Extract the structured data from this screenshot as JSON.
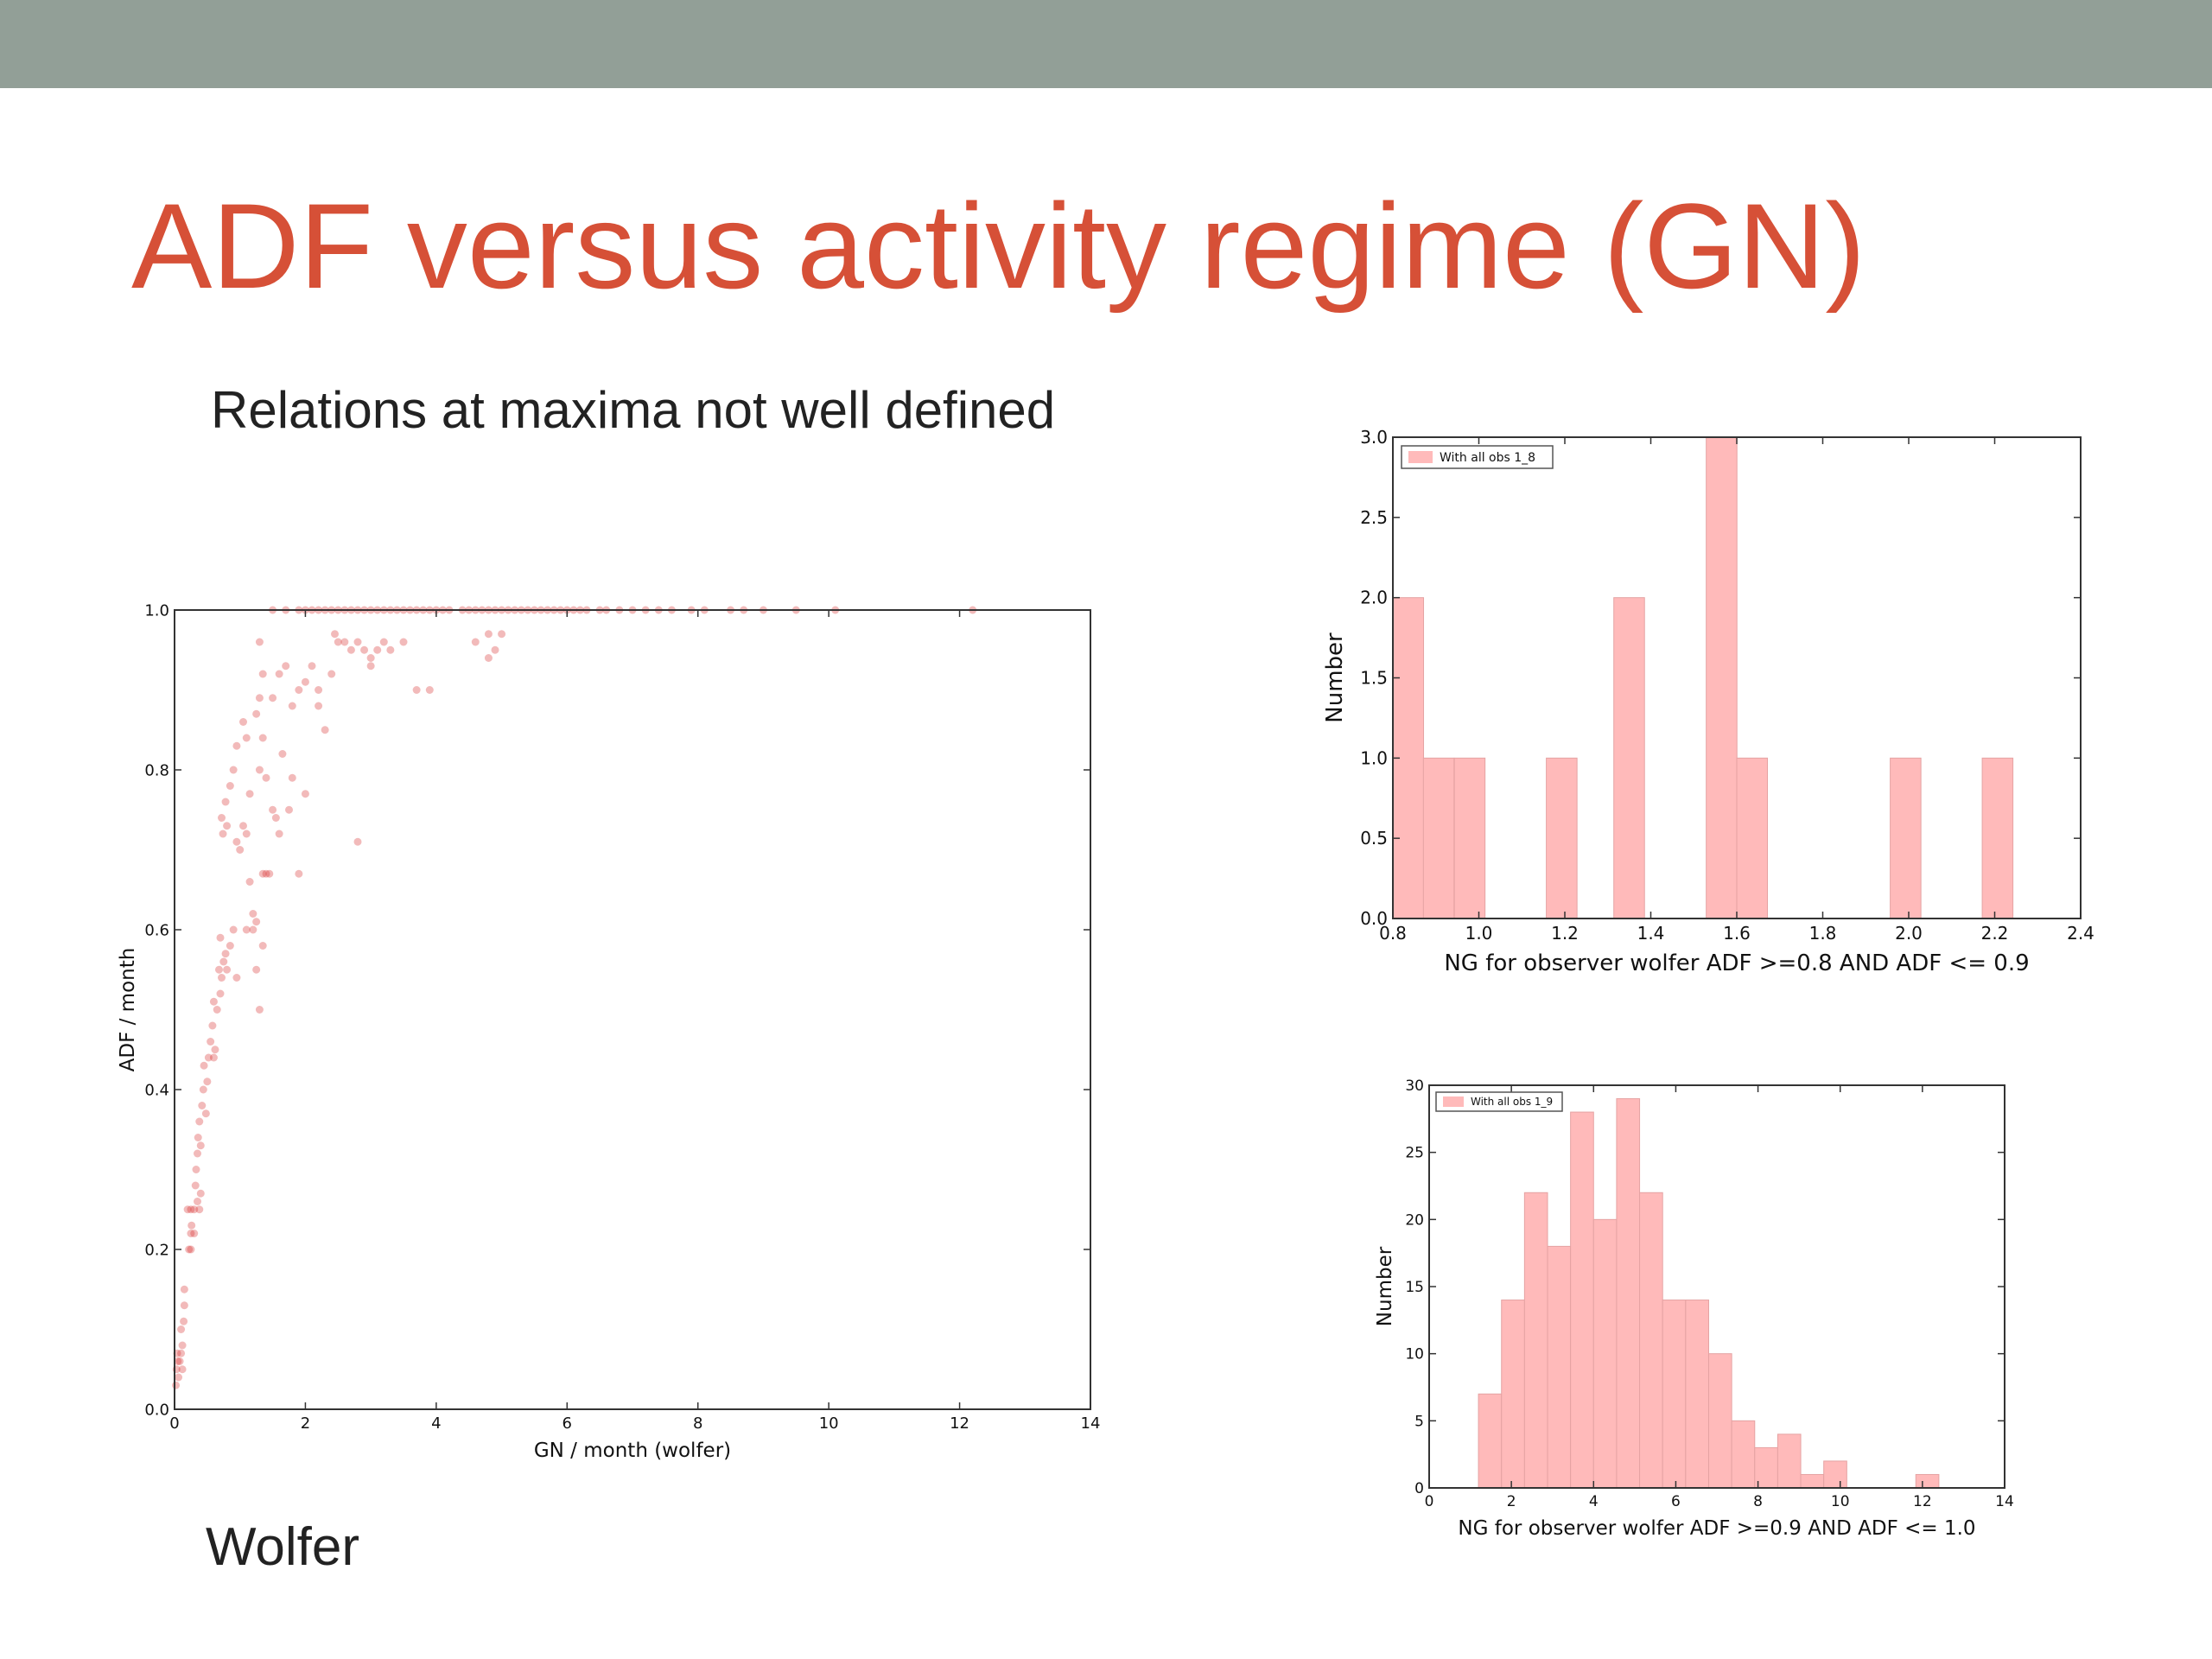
{
  "slide": {
    "title": "ADF versus activity regime (GN)",
    "subtitle": "Relations at maxima not well defined",
    "caption": "Wolfer",
    "header_color": "#929f97",
    "title_color": "#d65037"
  },
  "chart_data": [
    {
      "type": "scatter",
      "xlabel": "GN / month (wolfer)",
      "ylabel": "ADF / month",
      "xlim": [
        0,
        14
      ],
      "ylim": [
        0,
        1.0
      ],
      "xticks": [
        "0",
        "2",
        "4",
        "6",
        "8",
        "10",
        "12",
        "14"
      ],
      "yticks": [
        "0.0",
        "0.2",
        "0.4",
        "0.6",
        "0.8",
        "1.0"
      ],
      "color": "#d62728",
      "points": [
        [
          0.02,
          0.03
        ],
        [
          0.03,
          0.05
        ],
        [
          0.05,
          0.06
        ],
        [
          0.06,
          0.04
        ],
        [
          0.08,
          0.06
        ],
        [
          0.1,
          0.07
        ],
        [
          0.12,
          0.08
        ],
        [
          0.1,
          0.1
        ],
        [
          0.14,
          0.11
        ],
        [
          0.15,
          0.13
        ],
        [
          0.15,
          0.15
        ],
        [
          0.12,
          0.05
        ],
        [
          0.04,
          0.07
        ],
        [
          0.22,
          0.2
        ],
        [
          0.25,
          0.22
        ],
        [
          0.26,
          0.23
        ],
        [
          0.25,
          0.25
        ],
        [
          0.3,
          0.22
        ],
        [
          0.3,
          0.25
        ],
        [
          0.32,
          0.28
        ],
        [
          0.35,
          0.26
        ],
        [
          0.38,
          0.25
        ],
        [
          0.4,
          0.27
        ],
        [
          0.33,
          0.3
        ],
        [
          0.35,
          0.32
        ],
        [
          0.36,
          0.34
        ],
        [
          0.4,
          0.33
        ],
        [
          0.38,
          0.36
        ],
        [
          0.42,
          0.38
        ],
        [
          0.44,
          0.4
        ],
        [
          0.45,
          0.43
        ],
        [
          0.48,
          0.37
        ],
        [
          0.5,
          0.41
        ],
        [
          0.52,
          0.44
        ],
        [
          0.55,
          0.46
        ],
        [
          0.58,
          0.48
        ],
        [
          0.6,
          0.44
        ],
        [
          0.62,
          0.45
        ],
        [
          0.65,
          0.5
        ],
        [
          0.6,
          0.51
        ],
        [
          0.7,
          0.52
        ],
        [
          0.72,
          0.54
        ],
        [
          0.75,
          0.56
        ],
        [
          0.68,
          0.55
        ],
        [
          0.8,
          0.55
        ],
        [
          0.78,
          0.57
        ],
        [
          0.85,
          0.58
        ],
        [
          0.9,
          0.6
        ],
        [
          0.95,
          0.54
        ],
        [
          0.7,
          0.59
        ],
        [
          0.74,
          0.72
        ],
        [
          0.72,
          0.74
        ],
        [
          0.78,
          0.76
        ],
        [
          0.8,
          0.73
        ],
        [
          0.85,
          0.78
        ],
        [
          0.9,
          0.8
        ],
        [
          0.95,
          0.71
        ],
        [
          1.0,
          0.7
        ],
        [
          1.05,
          0.73
        ],
        [
          1.1,
          0.72
        ],
        [
          1.15,
          0.66
        ],
        [
          1.2,
          0.6
        ],
        [
          1.2,
          0.62
        ],
        [
          1.25,
          0.61
        ],
        [
          1.25,
          0.55
        ],
        [
          1.3,
          0.5
        ],
        [
          1.35,
          0.67
        ],
        [
          1.4,
          0.67
        ],
        [
          1.45,
          0.67
        ],
        [
          1.5,
          0.75
        ],
        [
          1.55,
          0.74
        ],
        [
          1.6,
          0.72
        ],
        [
          1.65,
          0.82
        ],
        [
          1.4,
          0.79
        ],
        [
          1.3,
          0.8
        ],
        [
          1.35,
          0.84
        ],
        [
          1.25,
          0.87
        ],
        [
          1.3,
          0.89
        ],
        [
          1.35,
          0.92
        ],
        [
          1.3,
          0.96
        ],
        [
          1.5,
          0.89
        ],
        [
          1.6,
          0.92
        ],
        [
          1.7,
          0.93
        ],
        [
          1.8,
          0.88
        ],
        [
          1.9,
          0.9
        ],
        [
          2.0,
          0.91
        ],
        [
          2.1,
          0.93
        ],
        [
          2.2,
          0.88
        ],
        [
          2.3,
          0.85
        ],
        [
          2.4,
          0.92
        ],
        [
          2.5,
          0.96
        ],
        [
          2.6,
          0.96
        ],
        [
          2.8,
          0.96
        ],
        [
          2.9,
          0.95
        ],
        [
          3.0,
          0.94
        ],
        [
          3.1,
          0.95
        ],
        [
          3.2,
          0.96
        ],
        [
          3.3,
          0.95
        ],
        [
          3.0,
          0.93
        ],
        [
          2.7,
          0.95
        ],
        [
          2.8,
          0.71
        ],
        [
          1.9,
          0.67
        ],
        [
          1.05,
          0.86
        ],
        [
          1.1,
          0.84
        ],
        [
          1.15,
          0.77
        ],
        [
          2.0,
          0.77
        ],
        [
          1.8,
          0.79
        ],
        [
          0.2,
          0.25
        ],
        [
          0.25,
          0.2
        ],
        [
          1.35,
          0.58
        ],
        [
          1.75,
          0.75
        ],
        [
          1.1,
          0.6
        ],
        [
          0.95,
          0.83
        ],
        [
          3.5,
          0.96
        ],
        [
          3.7,
          0.9
        ],
        [
          3.9,
          0.9
        ],
        [
          4.6,
          0.96
        ],
        [
          4.8,
          0.97
        ],
        [
          4.9,
          0.95
        ],
        [
          5.0,
          0.97
        ],
        [
          4.8,
          0.94
        ],
        [
          2.2,
          0.9
        ],
        [
          2.45,
          0.97
        ],
        [
          1.5,
          1.0
        ],
        [
          1.7,
          1.0
        ],
        [
          1.9,
          1.0
        ],
        [
          2.0,
          1.0
        ],
        [
          2.1,
          1.0
        ],
        [
          2.2,
          1.0
        ],
        [
          2.3,
          1.0
        ],
        [
          2.4,
          1.0
        ],
        [
          2.5,
          1.0
        ],
        [
          2.6,
          1.0
        ],
        [
          2.7,
          1.0
        ],
        [
          2.8,
          1.0
        ],
        [
          2.9,
          1.0
        ],
        [
          3.0,
          1.0
        ],
        [
          3.1,
          1.0
        ],
        [
          3.2,
          1.0
        ],
        [
          3.3,
          1.0
        ],
        [
          3.4,
          1.0
        ],
        [
          3.5,
          1.0
        ],
        [
          3.6,
          1.0
        ],
        [
          3.7,
          1.0
        ],
        [
          3.8,
          1.0
        ],
        [
          3.9,
          1.0
        ],
        [
          4.0,
          1.0
        ],
        [
          4.1,
          1.0
        ],
        [
          4.2,
          1.0
        ],
        [
          4.4,
          1.0
        ],
        [
          4.5,
          1.0
        ],
        [
          4.6,
          1.0
        ],
        [
          4.7,
          1.0
        ],
        [
          4.8,
          1.0
        ],
        [
          4.9,
          1.0
        ],
        [
          5.0,
          1.0
        ],
        [
          5.1,
          1.0
        ],
        [
          5.2,
          1.0
        ],
        [
          5.3,
          1.0
        ],
        [
          5.4,
          1.0
        ],
        [
          5.5,
          1.0
        ],
        [
          5.6,
          1.0
        ],
        [
          5.7,
          1.0
        ],
        [
          5.8,
          1.0
        ],
        [
          5.9,
          1.0
        ],
        [
          6.0,
          1.0
        ],
        [
          6.1,
          1.0
        ],
        [
          6.2,
          1.0
        ],
        [
          6.3,
          1.0
        ],
        [
          6.5,
          1.0
        ],
        [
          6.6,
          1.0
        ],
        [
          6.8,
          1.0
        ],
        [
          7.0,
          1.0
        ],
        [
          7.2,
          1.0
        ],
        [
          7.4,
          1.0
        ],
        [
          7.6,
          1.0
        ],
        [
          7.9,
          1.0
        ],
        [
          8.1,
          1.0
        ],
        [
          8.5,
          1.0
        ],
        [
          8.7,
          1.0
        ],
        [
          9.0,
          1.0
        ],
        [
          9.5,
          1.0
        ],
        [
          10.1,
          1.0
        ],
        [
          12.2,
          1.0
        ]
      ]
    },
    {
      "type": "bar",
      "xlabel": "NG for observer wolfer ADF >=0.8 AND ADF <= 0.9",
      "ylabel": "Number",
      "legend": "With all obs 1_8",
      "legend_position": "top-left",
      "xlim": [
        0.8,
        2.4
      ],
      "ylim": [
        0,
        3.0
      ],
      "xticks": [
        "0.8",
        "1.0",
        "1.2",
        "1.4",
        "1.6",
        "1.8",
        "2.0",
        "2.2",
        "2.4"
      ],
      "yticks": [
        "0.0",
        "0.5",
        "1.0",
        "1.5",
        "2.0",
        "2.5",
        "3.0"
      ],
      "bin_width": 0.0714,
      "color": "#ffbaba",
      "bins": [
        {
          "start": 0.8,
          "count": 2
        },
        {
          "start": 0.871,
          "count": 1
        },
        {
          "start": 0.943,
          "count": 1
        },
        {
          "start": 1.157,
          "count": 1
        },
        {
          "start": 1.314,
          "count": 2
        },
        {
          "start": 1.529,
          "count": 3
        },
        {
          "start": 1.6,
          "count": 1
        },
        {
          "start": 1.957,
          "count": 1
        },
        {
          "start": 2.171,
          "count": 1
        }
      ]
    },
    {
      "type": "bar",
      "xlabel": "NG for observer wolfer ADF >=0.9 AND ADF <= 1.0",
      "ylabel": "Number",
      "legend": "With all obs 1_9",
      "legend_position": "top-left",
      "xlim": [
        0,
        14
      ],
      "ylim": [
        0,
        30
      ],
      "xticks": [
        "0",
        "2",
        "4",
        "6",
        "8",
        "10",
        "12",
        "14"
      ],
      "yticks": [
        "0",
        "5",
        "10",
        "15",
        "20",
        "25",
        "30"
      ],
      "bin_width": 0.56,
      "color": "#ffbaba",
      "bins": [
        {
          "start": 1.2,
          "count": 7
        },
        {
          "start": 1.76,
          "count": 14
        },
        {
          "start": 2.32,
          "count": 22
        },
        {
          "start": 2.88,
          "count": 18
        },
        {
          "start": 3.44,
          "count": 28
        },
        {
          "start": 4.0,
          "count": 20
        },
        {
          "start": 4.56,
          "count": 29
        },
        {
          "start": 5.12,
          "count": 22
        },
        {
          "start": 5.68,
          "count": 14
        },
        {
          "start": 6.24,
          "count": 14
        },
        {
          "start": 6.8,
          "count": 10
        },
        {
          "start": 7.36,
          "count": 5
        },
        {
          "start": 7.92,
          "count": 3
        },
        {
          "start": 8.48,
          "count": 4
        },
        {
          "start": 9.04,
          "count": 1
        },
        {
          "start": 9.6,
          "count": 2
        },
        {
          "start": 11.84,
          "count": 1
        }
      ]
    }
  ]
}
